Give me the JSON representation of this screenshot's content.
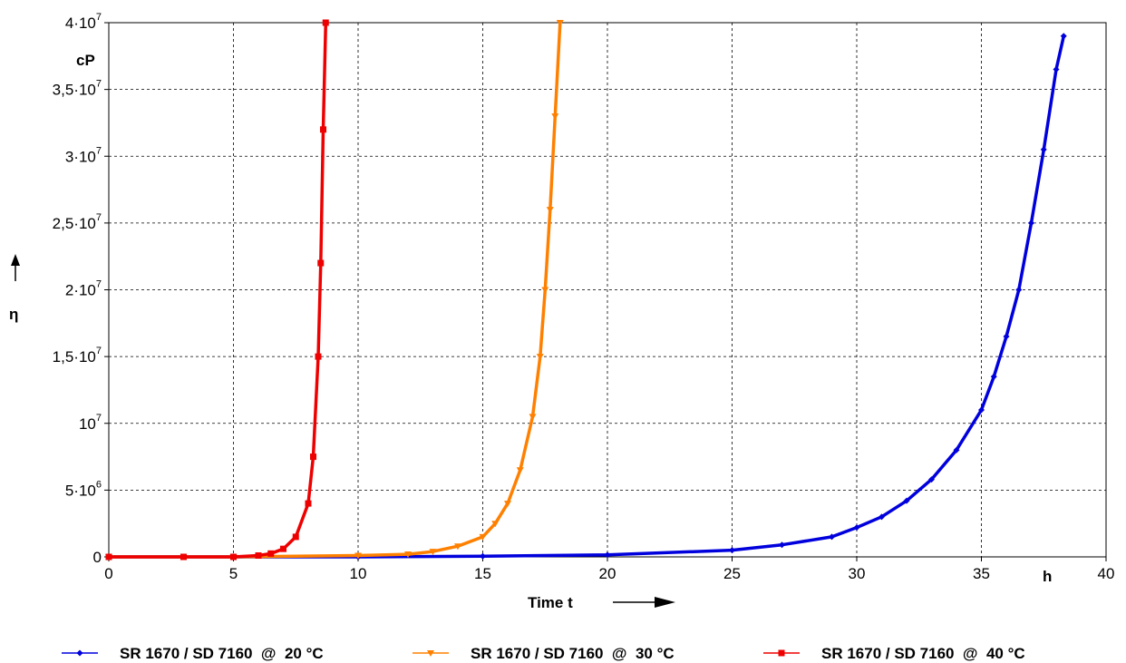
{
  "chart_data": {
    "type": "scatter",
    "xlabel": "Time t",
    "ylabel": "η",
    "x_unit": "h",
    "y_unit": "cP",
    "xlim": [
      0,
      40
    ],
    "ylim": [
      0,
      40000000
    ],
    "grid": true,
    "legend_position": "bottom",
    "x_ticks": [
      "0",
      "5",
      "10",
      "15",
      "20",
      "25",
      "30",
      "35",
      "40"
    ],
    "y_ticks": [
      {
        "value": 0,
        "mant": "0",
        "exp": ""
      },
      {
        "value": 5000000,
        "mant": "5·10",
        "exp": "6"
      },
      {
        "value": 10000000,
        "mant": "10",
        "exp": "7"
      },
      {
        "value": 15000000,
        "mant": "1,5·10",
        "exp": "7"
      },
      {
        "value": 20000000,
        "mant": "2·10",
        "exp": "7"
      },
      {
        "value": 25000000,
        "mant": "2,5·10",
        "exp": "7"
      },
      {
        "value": 30000000,
        "mant": "3·10",
        "exp": "7"
      },
      {
        "value": 35000000,
        "mant": "3,5·10",
        "exp": "7"
      },
      {
        "value": 40000000,
        "mant": "4·10",
        "exp": "7"
      }
    ],
    "series": [
      {
        "name": "SR 1670 / SD 7160  @  20 °C",
        "color": "#0000dd",
        "marker": "diamond",
        "x": [
          0,
          5,
          10,
          15,
          20,
          25,
          27,
          29,
          30,
          31,
          32,
          33,
          34,
          35,
          35.5,
          36,
          36.5,
          37,
          37.5,
          38,
          38.3
        ],
        "y": [
          0,
          0,
          0,
          50000,
          150000,
          500000,
          900000,
          1500000,
          2200000,
          3000000,
          4200000,
          5800000,
          8000000,
          11000000,
          13500000,
          16500000,
          20000000,
          25000000,
          30500000,
          36500000,
          39000000
        ]
      },
      {
        "name": "SR 1670 / SD 7160  @  30 °C",
        "color": "#ff8000",
        "marker": "triangle-down",
        "x": [
          0,
          5,
          10,
          12,
          13,
          14,
          15,
          15.5,
          16,
          16.5,
          17,
          17.3,
          17.5,
          17.7,
          17.9,
          18.1
        ],
        "y": [
          0,
          0,
          100000,
          200000,
          400000,
          800000,
          1500000,
          2500000,
          4000000,
          6500000,
          10500000,
          15000000,
          20000000,
          26000000,
          33000000,
          40000000
        ]
      },
      {
        "name": "SR 1670 / SD 7160  @  40 °C",
        "color": "#ee0000",
        "marker": "square",
        "x": [
          0,
          3,
          5,
          6,
          6.5,
          7,
          7.5,
          8,
          8.2,
          8.4,
          8.5,
          8.6,
          8.7
        ],
        "y": [
          0,
          0,
          0,
          100000,
          250000,
          600000,
          1500000,
          4000000,
          7500000,
          15000000,
          22000000,
          32000000,
          40000000
        ]
      }
    ]
  }
}
